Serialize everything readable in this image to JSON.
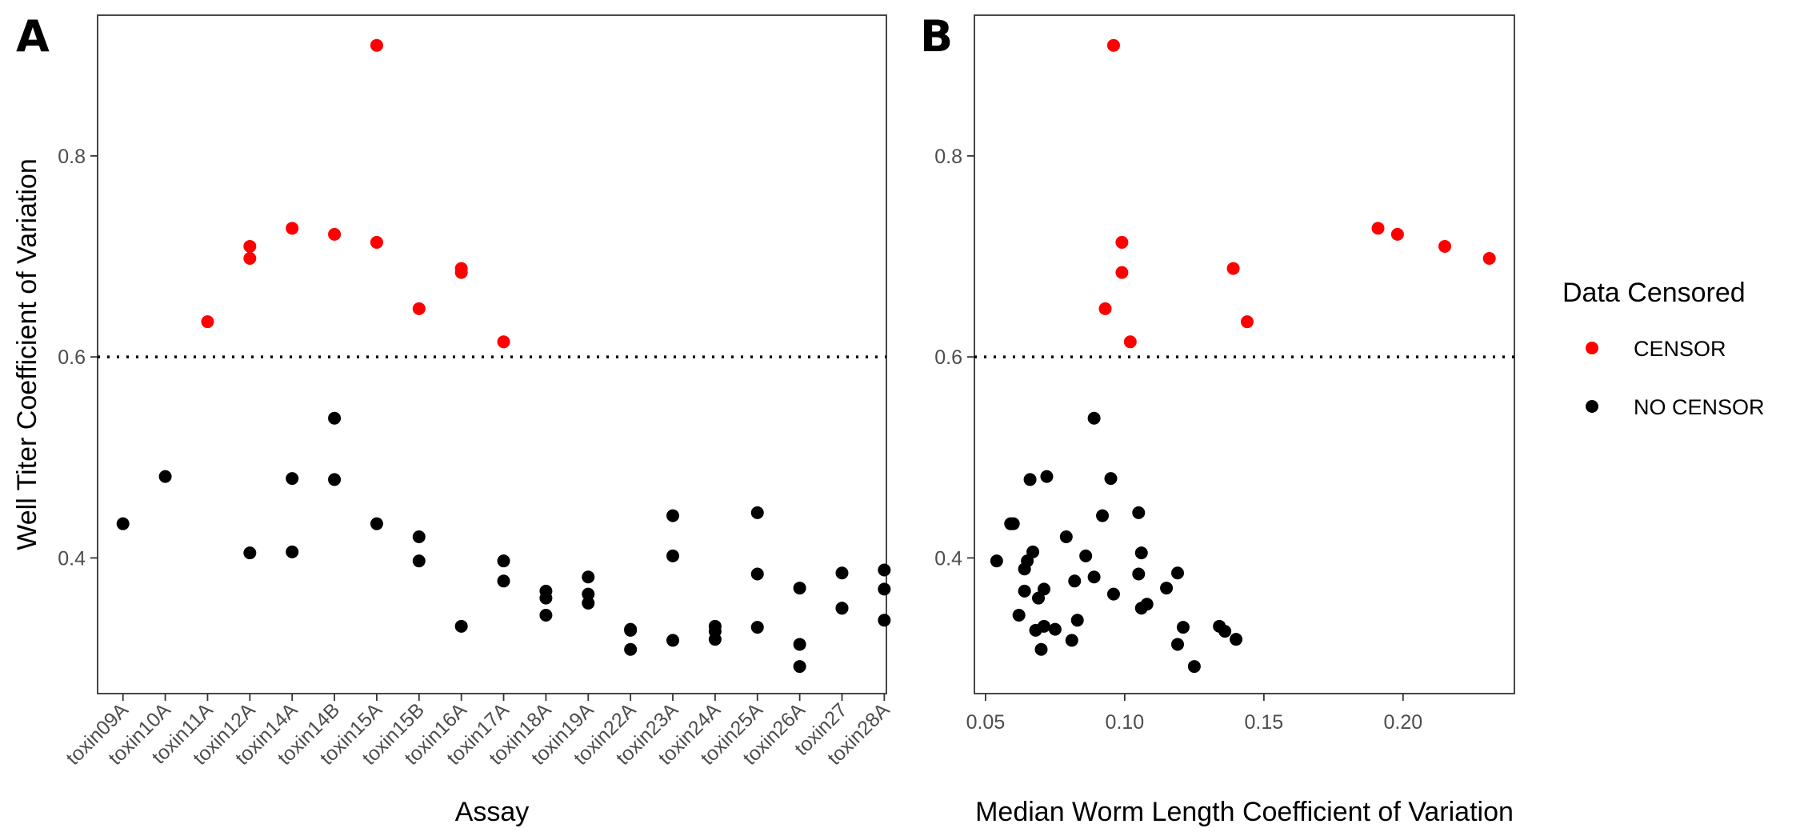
{
  "chart_data": [
    {
      "panel": "A",
      "type": "scatter",
      "xlabel": "Assay",
      "ylabel": "Well Titer Coefficient of Variation",
      "categories": [
        "toxin09A",
        "toxin10A",
        "toxin11A",
        "toxin12A",
        "toxin14A",
        "toxin14B",
        "toxin15A",
        "toxin15B",
        "toxin16A",
        "toxin17A",
        "toxin18A",
        "toxin19A",
        "toxin22A",
        "toxin23A",
        "toxin24A",
        "toxin25A",
        "toxin26A",
        "toxin27",
        "toxin28A"
      ],
      "ylim": [
        0.265,
        0.94
      ],
      "yticks": [
        0.4,
        0.6,
        0.8
      ],
      "ytick_labels": [
        "0.4",
        "0.6",
        "0.8"
      ],
      "threshold": 0.6,
      "series": [
        {
          "name": "CENSOR",
          "color": "#ff0000",
          "points": [
            {
              "x": "toxin11A",
              "y": 0.635
            },
            {
              "x": "toxin12A",
              "y": 0.698
            },
            {
              "x": "toxin12A",
              "y": 0.71
            },
            {
              "x": "toxin14A",
              "y": 0.728
            },
            {
              "x": "toxin14B",
              "y": 0.722
            },
            {
              "x": "toxin15A",
              "y": 0.714
            },
            {
              "x": "toxin15A",
              "y": 0.91
            },
            {
              "x": "toxin15B",
              "y": 0.648
            },
            {
              "x": "toxin16A",
              "y": 0.688
            },
            {
              "x": "toxin16A",
              "y": 0.684
            },
            {
              "x": "toxin17A",
              "y": 0.615
            }
          ]
        },
        {
          "name": "NO CENSOR",
          "color": "#000000",
          "points": [
            {
              "x": "toxin09A",
              "y": 0.434
            },
            {
              "x": "toxin10A",
              "y": 0.481
            },
            {
              "x": "toxin12A",
              "y": 0.405
            },
            {
              "x": "toxin14A",
              "y": 0.479
            },
            {
              "x": "toxin14A",
              "y": 0.406
            },
            {
              "x": "toxin14B",
              "y": 0.539
            },
            {
              "x": "toxin14B",
              "y": 0.478
            },
            {
              "x": "toxin15A",
              "y": 0.434
            },
            {
              "x": "toxin15B",
              "y": 0.421
            },
            {
              "x": "toxin15B",
              "y": 0.397
            },
            {
              "x": "toxin16A",
              "y": 0.332
            },
            {
              "x": "toxin17A",
              "y": 0.397
            },
            {
              "x": "toxin17A",
              "y": 0.377
            },
            {
              "x": "toxin18A",
              "y": 0.367
            },
            {
              "x": "toxin18A",
              "y": 0.36
            },
            {
              "x": "toxin18A",
              "y": 0.343
            },
            {
              "x": "toxin19A",
              "y": 0.381
            },
            {
              "x": "toxin19A",
              "y": 0.364
            },
            {
              "x": "toxin19A",
              "y": 0.355
            },
            {
              "x": "toxin22A",
              "y": 0.328
            },
            {
              "x": "toxin22A",
              "y": 0.329
            },
            {
              "x": "toxin22A",
              "y": 0.309
            },
            {
              "x": "toxin23A",
              "y": 0.402
            },
            {
              "x": "toxin23A",
              "y": 0.442
            },
            {
              "x": "toxin23A",
              "y": 0.318
            },
            {
              "x": "toxin24A",
              "y": 0.327
            },
            {
              "x": "toxin24A",
              "y": 0.319
            },
            {
              "x": "toxin24A",
              "y": 0.332
            },
            {
              "x": "toxin25A",
              "y": 0.445
            },
            {
              "x": "toxin25A",
              "y": 0.384
            },
            {
              "x": "toxin25A",
              "y": 0.331
            },
            {
              "x": "toxin26A",
              "y": 0.37
            },
            {
              "x": "toxin26A",
              "y": 0.314
            },
            {
              "x": "toxin26A",
              "y": 0.292
            },
            {
              "x": "toxin27",
              "y": 0.385
            },
            {
              "x": "toxin27",
              "y": 0.35
            },
            {
              "x": "toxin27",
              "y": 0.35
            },
            {
              "x": "toxin28A",
              "y": 0.388
            },
            {
              "x": "toxin28A",
              "y": 0.369
            },
            {
              "x": "toxin28A",
              "y": 0.338
            }
          ]
        }
      ]
    },
    {
      "panel": "B",
      "type": "scatter",
      "xlabel": "Median Worm Length Coefficient of Variation",
      "ylabel": "",
      "xlim": [
        0.046,
        0.24
      ],
      "xticks": [
        0.05,
        0.1,
        0.15,
        0.2
      ],
      "xtick_labels": [
        "0.05",
        "0.10",
        "0.15",
        "0.20"
      ],
      "ylim": [
        0.265,
        0.94
      ],
      "yticks": [
        0.4,
        0.6,
        0.8
      ],
      "ytick_labels": [
        "0.4",
        "0.6",
        "0.8"
      ],
      "threshold": 0.6,
      "series": [
        {
          "name": "CENSOR",
          "color": "#ff0000",
          "points": [
            {
              "x": 0.096,
              "y": 0.91
            },
            {
              "x": 0.099,
              "y": 0.714
            },
            {
              "x": 0.099,
              "y": 0.684
            },
            {
              "x": 0.093,
              "y": 0.648
            },
            {
              "x": 0.102,
              "y": 0.615
            },
            {
              "x": 0.139,
              "y": 0.688
            },
            {
              "x": 0.144,
              "y": 0.635
            },
            {
              "x": 0.191,
              "y": 0.728
            },
            {
              "x": 0.198,
              "y": 0.722
            },
            {
              "x": 0.215,
              "y": 0.71
            },
            {
              "x": 0.231,
              "y": 0.698
            }
          ]
        },
        {
          "name": "NO CENSOR",
          "color": "#000000",
          "points": [
            {
              "x": 0.089,
              "y": 0.539
            },
            {
              "x": 0.066,
              "y": 0.478
            },
            {
              "x": 0.072,
              "y": 0.481
            },
            {
              "x": 0.095,
              "y": 0.479
            },
            {
              "x": 0.059,
              "y": 0.434
            },
            {
              "x": 0.06,
              "y": 0.434
            },
            {
              "x": 0.092,
              "y": 0.442
            },
            {
              "x": 0.105,
              "y": 0.445
            },
            {
              "x": 0.079,
              "y": 0.421
            },
            {
              "x": 0.067,
              "y": 0.406
            },
            {
              "x": 0.054,
              "y": 0.397
            },
            {
              "x": 0.065,
              "y": 0.397
            },
            {
              "x": 0.064,
              "y": 0.389
            },
            {
              "x": 0.086,
              "y": 0.402
            },
            {
              "x": 0.106,
              "y": 0.405
            },
            {
              "x": 0.089,
              "y": 0.381
            },
            {
              "x": 0.082,
              "y": 0.377
            },
            {
              "x": 0.105,
              "y": 0.384
            },
            {
              "x": 0.119,
              "y": 0.385
            },
            {
              "x": 0.064,
              "y": 0.367
            },
            {
              "x": 0.071,
              "y": 0.369
            },
            {
              "x": 0.096,
              "y": 0.364
            },
            {
              "x": 0.115,
              "y": 0.37
            },
            {
              "x": 0.069,
              "y": 0.36
            },
            {
              "x": 0.106,
              "y": 0.35
            },
            {
              "x": 0.108,
              "y": 0.354
            },
            {
              "x": 0.062,
              "y": 0.343
            },
            {
              "x": 0.083,
              "y": 0.338
            },
            {
              "x": 0.068,
              "y": 0.328
            },
            {
              "x": 0.071,
              "y": 0.332
            },
            {
              "x": 0.075,
              "y": 0.329
            },
            {
              "x": 0.121,
              "y": 0.331
            },
            {
              "x": 0.134,
              "y": 0.332
            },
            {
              "x": 0.136,
              "y": 0.327
            },
            {
              "x": 0.081,
              "y": 0.318
            },
            {
              "x": 0.119,
              "y": 0.314
            },
            {
              "x": 0.14,
              "y": 0.319
            },
            {
              "x": 0.07,
              "y": 0.309
            },
            {
              "x": 0.125,
              "y": 0.292
            }
          ]
        }
      ]
    }
  ],
  "legend": {
    "title": "Data Censored",
    "items": [
      {
        "label": "CENSOR",
        "color": "#ff0000"
      },
      {
        "label": "NO CENSOR",
        "color": "#000000"
      }
    ]
  }
}
